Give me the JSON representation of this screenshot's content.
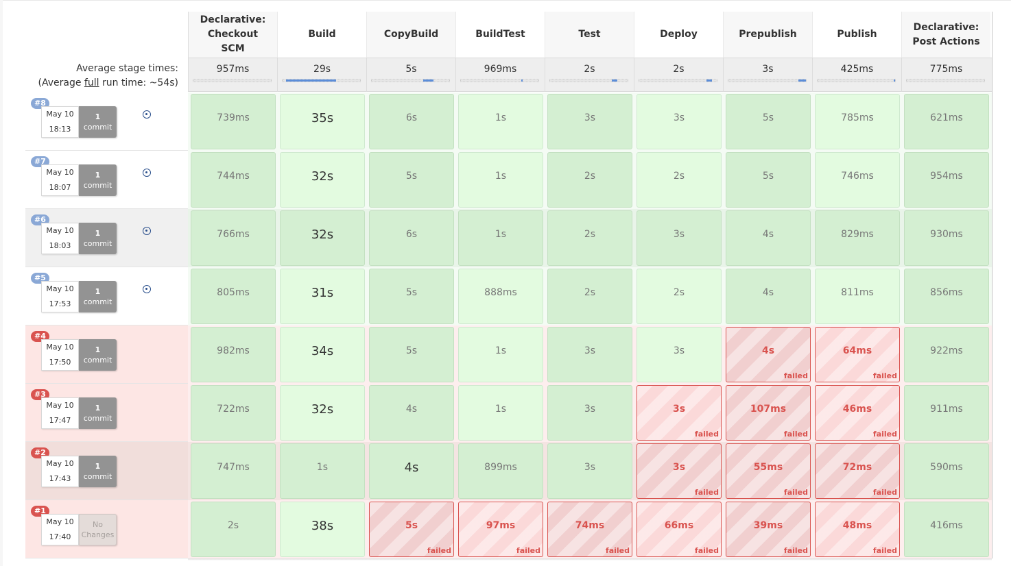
{
  "stages": [
    {
      "name": "Declarative: Checkout SCM",
      "avg": "957ms"
    },
    {
      "name": "Build",
      "avg": "29s"
    },
    {
      "name": "CopyBuild",
      "avg": "5s"
    },
    {
      "name": "BuildTest",
      "avg": "969ms"
    },
    {
      "name": "Test",
      "avg": "2s"
    },
    {
      "name": "Deploy",
      "avg": "2s"
    },
    {
      "name": "Prepublish",
      "avg": "3s"
    },
    {
      "name": "Publish",
      "avg": "425ms"
    },
    {
      "name": "Declarative: Post Actions",
      "avg": "775ms"
    }
  ],
  "avg_bar_fractions": [
    0,
    0.65,
    0.14,
    0.02,
    0.07,
    0.07,
    0.1,
    0.01,
    0
  ],
  "labels": {
    "avg_stage_times": "Average stage times:",
    "avg_full_prefix": "(Average ",
    "avg_full_word": "full",
    "avg_full_suffix": " run time: ~54s)",
    "failed": "failed"
  },
  "colors": {
    "success": "#e3fbe0",
    "failed": "#d9534f",
    "badge_ok": "#8aa8d6",
    "bar": "#5b8dd9"
  },
  "runs": [
    {
      "id": "#8",
      "status": "ok",
      "date": "May 10",
      "time": "18:13",
      "commit_n": "1",
      "commit_word": "commit",
      "info": true,
      "stages": [
        [
          "739ms",
          "ok"
        ],
        [
          "35s",
          "ok"
        ],
        [
          "6s",
          "ok"
        ],
        [
          "1s",
          "ok"
        ],
        [
          "3s",
          "ok"
        ],
        [
          "3s",
          "ok"
        ],
        [
          "5s",
          "ok"
        ],
        [
          "785ms",
          "ok"
        ],
        [
          "621ms",
          "ok"
        ]
      ]
    },
    {
      "id": "#7",
      "status": "ok",
      "date": "May 10",
      "time": "18:07",
      "commit_n": "1",
      "commit_word": "commit",
      "info": true,
      "stages": [
        [
          "744ms",
          "ok"
        ],
        [
          "32s",
          "ok"
        ],
        [
          "5s",
          "ok"
        ],
        [
          "1s",
          "ok"
        ],
        [
          "2s",
          "ok"
        ],
        [
          "2s",
          "ok"
        ],
        [
          "5s",
          "ok"
        ],
        [
          "746ms",
          "ok"
        ],
        [
          "954ms",
          "ok"
        ]
      ]
    },
    {
      "id": "#6",
      "status": "ok",
      "hl": true,
      "date": "May 10",
      "time": "18:03",
      "commit_n": "1",
      "commit_word": "commit",
      "info": true,
      "stages": [
        [
          "766ms",
          "ok"
        ],
        [
          "32s",
          "ok"
        ],
        [
          "6s",
          "ok"
        ],
        [
          "1s",
          "ok"
        ],
        [
          "2s",
          "ok"
        ],
        [
          "3s",
          "ok"
        ],
        [
          "4s",
          "ok"
        ],
        [
          "829ms",
          "ok"
        ],
        [
          "930ms",
          "ok"
        ]
      ]
    },
    {
      "id": "#5",
      "status": "ok",
      "date": "May 10",
      "time": "17:53",
      "commit_n": "1",
      "commit_word": "commit",
      "info": true,
      "stages": [
        [
          "805ms",
          "ok"
        ],
        [
          "31s",
          "ok"
        ],
        [
          "5s",
          "ok"
        ],
        [
          "888ms",
          "ok"
        ],
        [
          "2s",
          "ok"
        ],
        [
          "2s",
          "ok"
        ],
        [
          "4s",
          "ok"
        ],
        [
          "811ms",
          "ok"
        ],
        [
          "856ms",
          "ok"
        ]
      ]
    },
    {
      "id": "#4",
      "status": "bad",
      "date": "May 10",
      "time": "17:50",
      "commit_n": "1",
      "commit_word": "commit",
      "info": false,
      "stages": [
        [
          "982ms",
          "ok"
        ],
        [
          "34s",
          "ok"
        ],
        [
          "5s",
          "ok"
        ],
        [
          "1s",
          "ok"
        ],
        [
          "3s",
          "ok"
        ],
        [
          "3s",
          "ok"
        ],
        [
          "4s",
          "fail"
        ],
        [
          "64ms",
          "fail"
        ],
        [
          "922ms",
          "ok"
        ]
      ]
    },
    {
      "id": "#3",
      "status": "bad",
      "date": "May 10",
      "time": "17:47",
      "commit_n": "1",
      "commit_word": "commit",
      "info": false,
      "stages": [
        [
          "722ms",
          "ok"
        ],
        [
          "32s",
          "ok"
        ],
        [
          "4s",
          "ok"
        ],
        [
          "1s",
          "ok"
        ],
        [
          "3s",
          "ok"
        ],
        [
          "3s",
          "fail"
        ],
        [
          "107ms",
          "fail"
        ],
        [
          "46ms",
          "fail"
        ],
        [
          "911ms",
          "ok"
        ]
      ]
    },
    {
      "id": "#2",
      "status": "bad",
      "hl": true,
      "date": "May 10",
      "time": "17:43",
      "commit_n": "1",
      "commit_word": "commit",
      "info": false,
      "stages": [
        [
          "747ms",
          "ok"
        ],
        [
          "1s",
          "ok"
        ],
        [
          "4s",
          "ok"
        ],
        [
          "899ms",
          "ok"
        ],
        [
          "3s",
          "ok"
        ],
        [
          "3s",
          "fail"
        ],
        [
          "55ms",
          "fail"
        ],
        [
          "72ms",
          "fail"
        ],
        [
          "590ms",
          "ok"
        ]
      ]
    },
    {
      "id": "#1",
      "status": "bad",
      "date": "May 10",
      "time": "17:40",
      "commit_n": "No",
      "commit_word": "Changes",
      "no_changes": true,
      "info": false,
      "stages": [
        [
          "2s",
          "ok"
        ],
        [
          "38s",
          "ok"
        ],
        [
          "5s",
          "fail"
        ],
        [
          "97ms",
          "fail"
        ],
        [
          "74ms",
          "fail"
        ],
        [
          "66ms",
          "fail"
        ],
        [
          "39ms",
          "fail"
        ],
        [
          "48ms",
          "fail"
        ],
        [
          "416ms",
          "ok"
        ]
      ]
    }
  ]
}
